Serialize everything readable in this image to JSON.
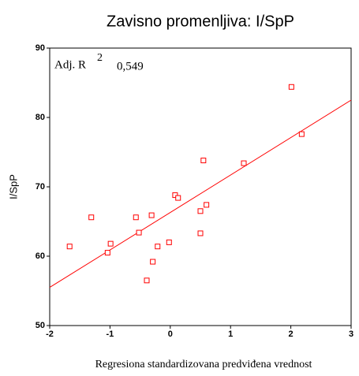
{
  "chart_data": {
    "type": "scatter",
    "title": "Zavisno promenljiva: I/SpP",
    "xlabel": "Regresiona standardizovana predviđena vrednost",
    "ylabel": "I/SpP",
    "annotation": {
      "label": "Adj. R",
      "superscript": "2",
      "value": "0,549"
    },
    "x": [
      -1.67,
      -1.31,
      -1.04,
      -0.99,
      -0.57,
      -0.52,
      -0.31,
      -0.29,
      -0.21,
      -0.39,
      -0.02,
      0.08,
      0.13,
      0.5,
      0.5,
      0.55,
      0.6,
      1.22,
      2.01,
      2.18
    ],
    "values": [
      61.4,
      65.6,
      60.5,
      61.8,
      65.6,
      63.4,
      65.9,
      59.2,
      61.4,
      56.5,
      62.0,
      68.8,
      68.4,
      66.5,
      63.3,
      73.8,
      67.4,
      73.4,
      84.4,
      77.6
    ],
    "color": "#ff0000",
    "fit": {
      "x": [
        -2,
        3
      ],
      "y": [
        55.5,
        82.5
      ],
      "color": "#ff0000"
    },
    "xlim": [
      -2,
      3
    ],
    "xticks": [
      -2,
      -1,
      0,
      1,
      2,
      3
    ],
    "ylim": [
      50,
      90
    ],
    "yticks": [
      50,
      60,
      70,
      80,
      90
    ],
    "grid": false
  }
}
